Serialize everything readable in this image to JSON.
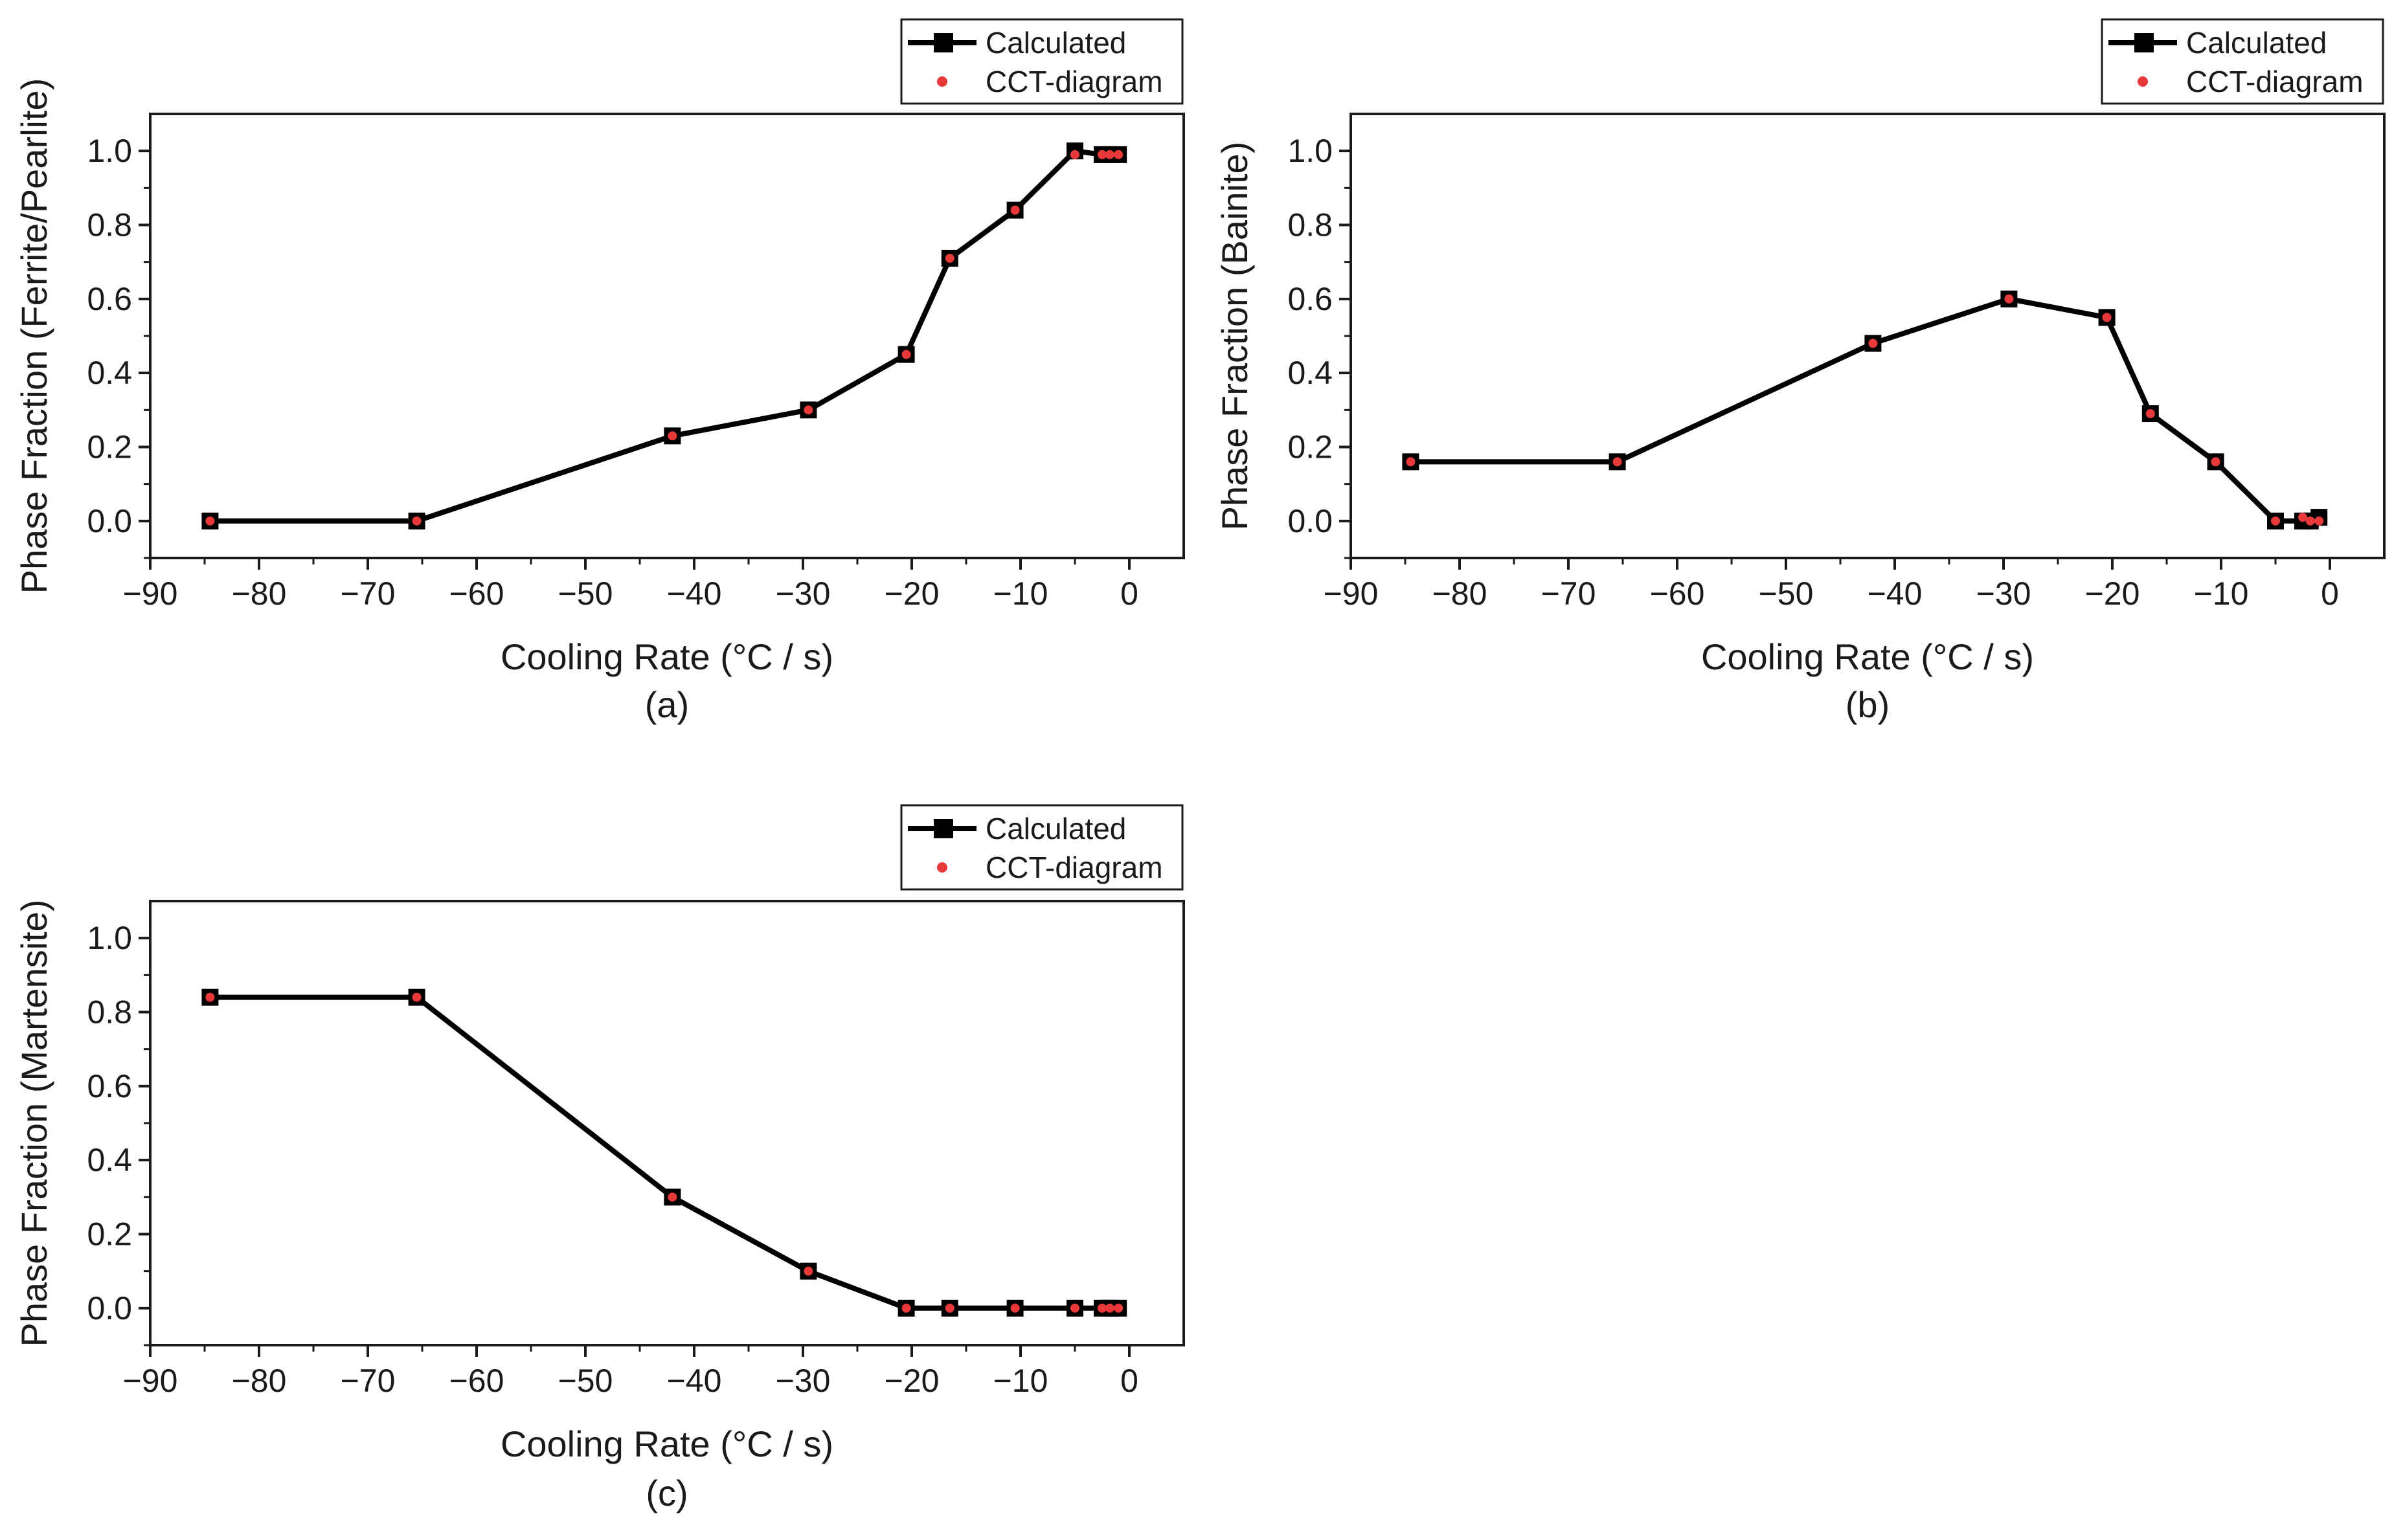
{
  "chart_data": [
    {
      "type": "line",
      "panel_label": "(a)",
      "xlabel": "Cooling Rate (°C / s)",
      "ylabel": "Phase Fraction (Ferrite/Pearlite)",
      "xlim": [
        -90,
        5
      ],
      "ylim": [
        -0.1,
        1.1
      ],
      "xticks": [
        -90,
        -80,
        -70,
        -60,
        -50,
        -40,
        -30,
        -20,
        -10,
        0
      ],
      "xtick_labels": [
        "−90",
        "−80",
        "−70",
        "−60",
        "−50",
        "−40",
        "−30",
        "−20",
        "−10",
        "0"
      ],
      "yticks": [
        0.0,
        0.2,
        0.4,
        0.6,
        0.8,
        1.0
      ],
      "ytick_labels": [
        "0.0",
        "0.2",
        "0.4",
        "0.6",
        "0.8",
        "1.0"
      ],
      "legend": [
        "Calculated",
        "CCT-diagram"
      ],
      "legend_position": "top-right",
      "series": [
        {
          "name": "Calculated",
          "x": [
            -84.5,
            -65.5,
            -42,
            -29.5,
            -20.5,
            -16.5,
            -10.5,
            -5,
            -2.5,
            -1.8,
            -1
          ],
          "values": [
            0.0,
            0.0,
            0.23,
            0.3,
            0.45,
            0.71,
            0.84,
            1.0,
            0.99,
            0.99,
            0.99
          ]
        },
        {
          "name": "CCT-diagram",
          "x": [
            -84.5,
            -65.5,
            -42,
            -29.5,
            -20.5,
            -16.5,
            -10.5,
            -5,
            -2.5,
            -1.8,
            -1
          ],
          "values": [
            0.0,
            0.0,
            0.23,
            0.3,
            0.45,
            0.71,
            0.84,
            0.99,
            0.99,
            0.99,
            0.99
          ]
        }
      ]
    },
    {
      "type": "line",
      "panel_label": "(b)",
      "xlabel": "Cooling Rate (°C / s)",
      "ylabel": "Phase Fraction (Bainite)",
      "xlim": [
        -90,
        5
      ],
      "ylim": [
        -0.1,
        1.1
      ],
      "xticks": [
        -90,
        -80,
        -70,
        -60,
        -50,
        -40,
        -30,
        -20,
        -10,
        0
      ],
      "xtick_labels": [
        "−90",
        "−80",
        "−70",
        "−60",
        "−50",
        "−40",
        "−30",
        "−20",
        "−10",
        "0"
      ],
      "yticks": [
        0.0,
        0.2,
        0.4,
        0.6,
        0.8,
        1.0
      ],
      "ytick_labels": [
        "0.0",
        "0.2",
        "0.4",
        "0.6",
        "0.8",
        "1.0"
      ],
      "legend": [
        "Calculated",
        "CCT-diagram"
      ],
      "legend_position": "top-right",
      "series": [
        {
          "name": "Calculated",
          "x": [
            -84.5,
            -65.5,
            -42,
            -29.5,
            -20.5,
            -16.5,
            -10.5,
            -5,
            -2.5,
            -1.8,
            -1
          ],
          "values": [
            0.16,
            0.16,
            0.48,
            0.6,
            0.55,
            0.29,
            0.16,
            0.0,
            0.0,
            0.0,
            0.01
          ]
        },
        {
          "name": "CCT-diagram",
          "x": [
            -84.5,
            -65.5,
            -42,
            -29.5,
            -20.5,
            -16.5,
            -10.5,
            -5,
            -2.5,
            -1.8,
            -1
          ],
          "values": [
            0.16,
            0.16,
            0.48,
            0.6,
            0.55,
            0.29,
            0.16,
            0.0,
            0.01,
            0.0,
            0.0
          ]
        }
      ]
    },
    {
      "type": "line",
      "panel_label": "(c)",
      "xlabel": "Cooling Rate (°C / s)",
      "ylabel": "Phase Fraction (Martensite)",
      "xlim": [
        -90,
        5
      ],
      "ylim": [
        -0.1,
        1.1
      ],
      "xticks": [
        -90,
        -80,
        -70,
        -60,
        -50,
        -40,
        -30,
        -20,
        -10,
        0
      ],
      "xtick_labels": [
        "−90",
        "−80",
        "−70",
        "−60",
        "−50",
        "−40",
        "−30",
        "−20",
        "−10",
        "0"
      ],
      "yticks": [
        0.0,
        0.2,
        0.4,
        0.6,
        0.8,
        1.0
      ],
      "ytick_labels": [
        "0.0",
        "0.2",
        "0.4",
        "0.6",
        "0.8",
        "1.0"
      ],
      "legend": [
        "Calculated",
        "CCT-diagram"
      ],
      "legend_position": "top-right",
      "series": [
        {
          "name": "Calculated",
          "x": [
            -84.5,
            -65.5,
            -42,
            -29.5,
            -20.5,
            -16.5,
            -10.5,
            -5,
            -2.5,
            -1.8,
            -1
          ],
          "values": [
            0.84,
            0.84,
            0.3,
            0.1,
            0.0,
            0.0,
            0.0,
            0.0,
            0.0,
            0.0,
            0.0
          ]
        },
        {
          "name": "CCT-diagram",
          "x": [
            -84.5,
            -65.5,
            -42,
            -29.5,
            -20.5,
            -16.5,
            -10.5,
            -5,
            -2.5,
            -1.8,
            -1
          ],
          "values": [
            0.84,
            0.84,
            0.3,
            0.1,
            0.0,
            0.0,
            0.0,
            0.0,
            0.0,
            0.0,
            0.0
          ]
        }
      ]
    }
  ],
  "colors": {
    "line": "#000000",
    "marker_calculated": "#000000",
    "marker_cct": "#e8393a",
    "axis": "#1a1a1a"
  }
}
